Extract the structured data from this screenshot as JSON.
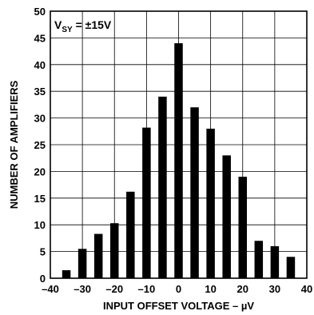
{
  "chart_data": {
    "type": "bar",
    "x": [
      -35,
      -30,
      -25,
      -20,
      -15,
      -10,
      -5,
      0,
      5,
      10,
      15,
      20,
      25,
      30,
      35
    ],
    "values": [
      1.5,
      5.5,
      8.3,
      10.3,
      16.2,
      28.2,
      34,
      44,
      32,
      28,
      23,
      19,
      7,
      6,
      4
    ],
    "xlim": [
      -40,
      40
    ],
    "ylim": [
      0,
      50
    ],
    "xticks": [
      -40,
      -30,
      -20,
      -10,
      0,
      10,
      20,
      30,
      40
    ],
    "xtick_labels": [
      "–40",
      "–30",
      "–20",
      "–10",
      "0",
      "10",
      "20",
      "30",
      "40"
    ],
    "yticks": [
      0,
      5,
      10,
      15,
      20,
      25,
      30,
      35,
      40,
      45,
      50
    ],
    "xlabel": "INPUT OFFSET VOLTAGE – µV",
    "ylabel": "NUMBER OF AMPLIFIERS",
    "annotation": {
      "main": "V",
      "sub": "SY",
      "rest": " = ±15V"
    },
    "grid": true
  }
}
